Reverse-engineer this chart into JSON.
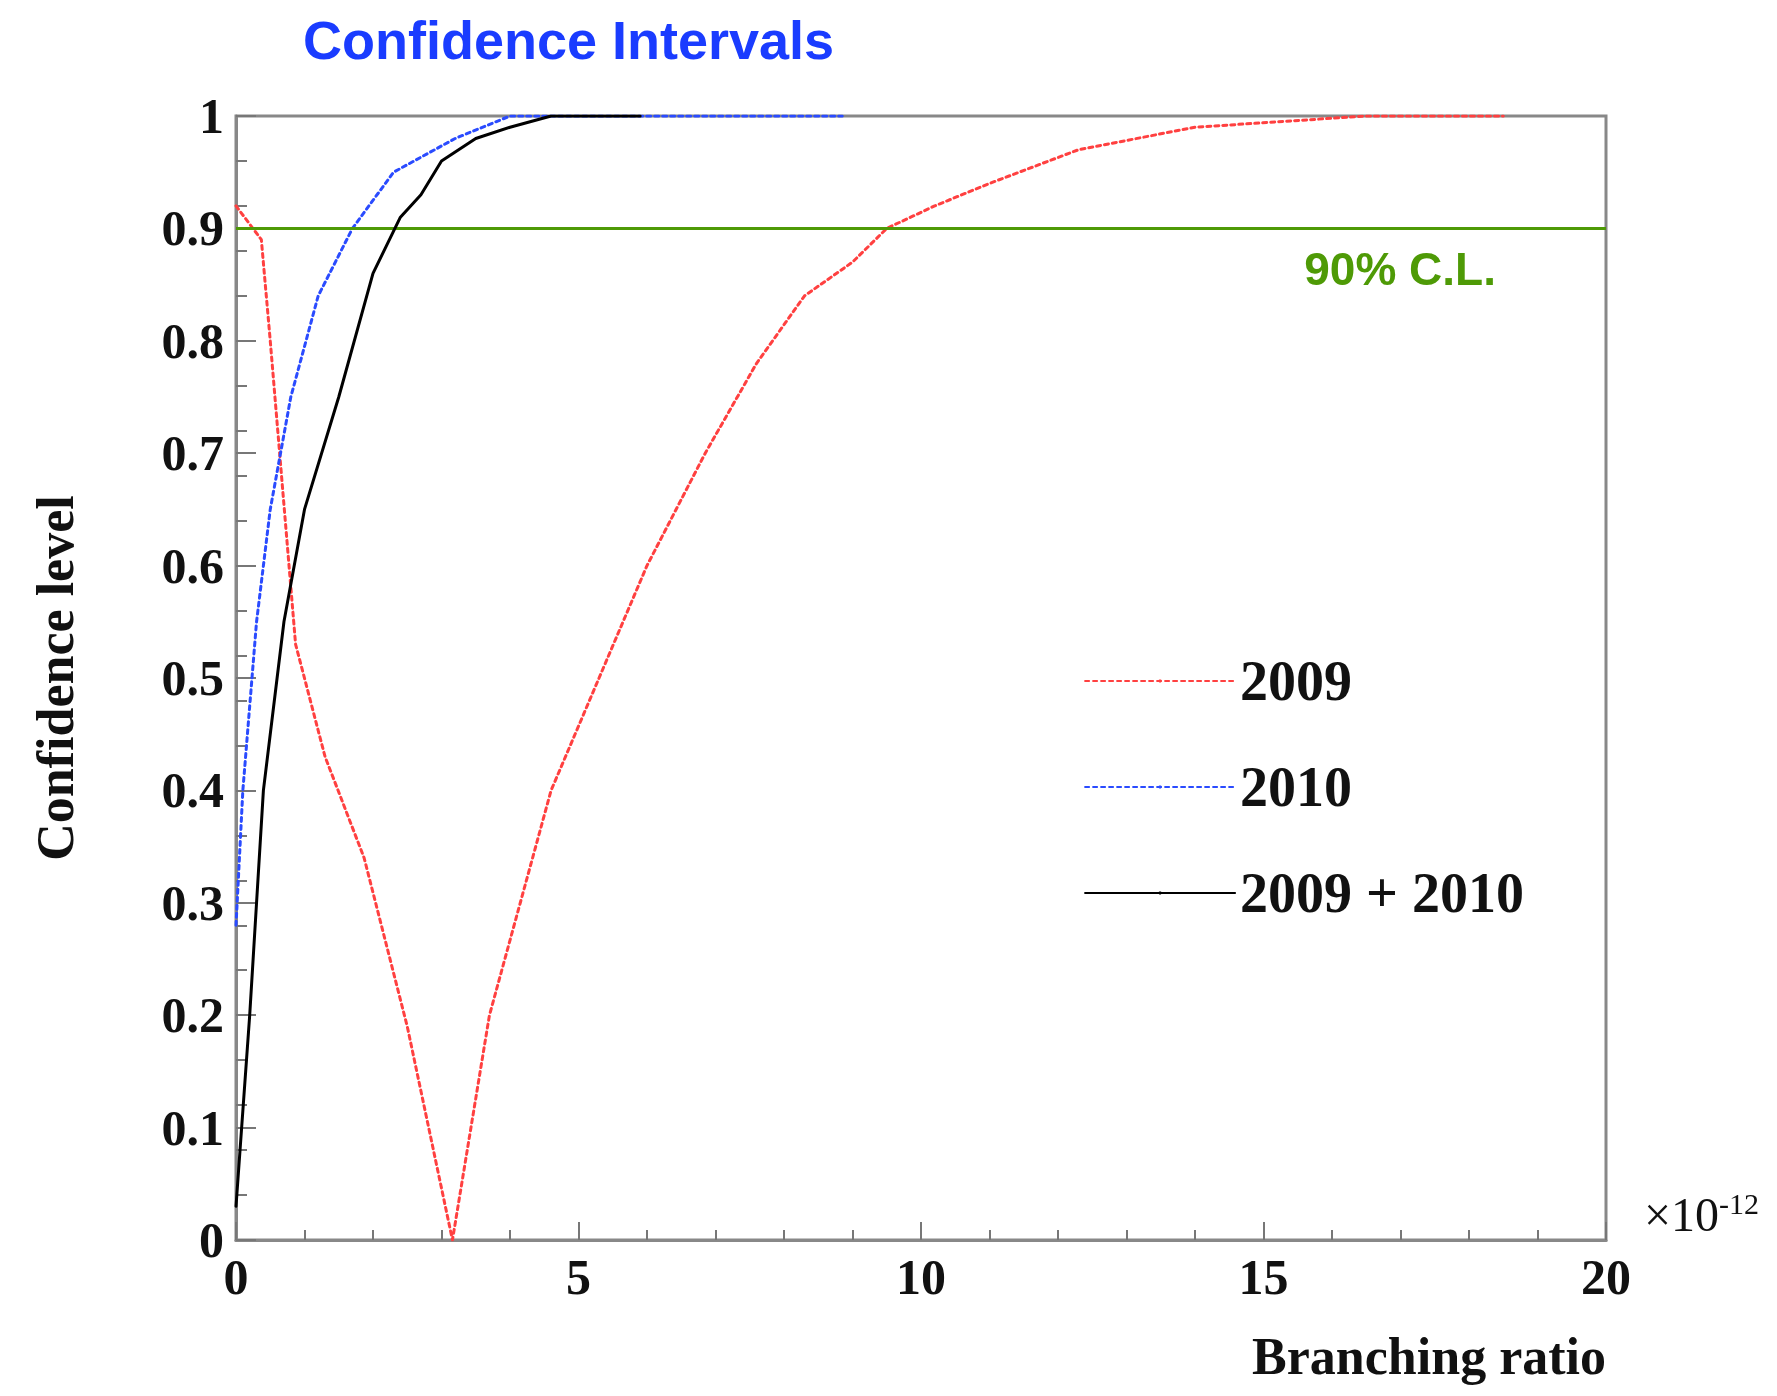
{
  "chart_data": {
    "type": "line",
    "title": "Confidence Intervals",
    "xlabel": "Branching ratio",
    "ylabel": "Confidence level",
    "annotations": [
      "×10$^{-12}$"
    ],
    "xlim": [
      0,
      20
    ],
    "xticks": [
      0,
      5,
      10,
      15,
      20
    ],
    "ylim": [
      0,
      1
    ],
    "yticks": [
      0,
      0.1,
      0.2,
      0.3,
      0.4,
      0.5,
      0.6,
      0.7,
      0.8,
      0.9,
      1
    ],
    "grid": false,
    "legend": "right",
    "marker": "none",
    "ref_lines": [
      {
        "axis": "y",
        "value": 0.9,
        "label": "90% C.L.",
        "color": "#4e9a06",
        "line_style": "solid"
      }
    ],
    "series": [
      {
        "name": "2009",
        "color": "#ff4040",
        "line_style": "dotted",
        "x": [
          0,
          0.37,
          0.5,
          0.87,
          1.3,
          1.87,
          2.5,
          3.16,
          3.7,
          4.6,
          5.3,
          6.0,
          6.85,
          7.6,
          8.3,
          9.0,
          9.5,
          10.2,
          11.0,
          12.3,
          14.0,
          16.5,
          18.5
        ],
        "values": [
          0.92,
          0.89,
          0.8,
          0.53,
          0.43,
          0.34,
          0.19,
          0.0,
          0.2,
          0.4,
          0.5,
          0.6,
          0.7,
          0.78,
          0.84,
          0.87,
          0.9,
          0.92,
          0.94,
          0.97,
          0.99,
          1.0,
          1.0
        ]
      },
      {
        "name": "2010",
        "color": "#2a4bff",
        "line_style": "dotted",
        "x": [
          0,
          0.1,
          0.3,
          0.5,
          0.8,
          1.2,
          1.7,
          2.3,
          3.2,
          4.0,
          6.0,
          8.85
        ],
        "values": [
          0.28,
          0.4,
          0.55,
          0.65,
          0.75,
          0.84,
          0.9,
          0.95,
          0.98,
          1.0,
          1.0,
          1.0
        ]
      },
      {
        "name": "2009 + 2010",
        "color": "#000000",
        "line_style": "solid",
        "x": [
          0,
          0.2,
          0.4,
          0.7,
          1.0,
          1.5,
          2.0,
          2.4,
          2.7,
          3.0,
          3.5,
          4.0,
          4.6,
          5.9
        ],
        "values": [
          0.03,
          0.2,
          0.4,
          0.55,
          0.65,
          0.75,
          0.86,
          0.91,
          0.93,
          0.96,
          0.98,
          0.99,
          1.0,
          1.0
        ]
      }
    ]
  }
}
